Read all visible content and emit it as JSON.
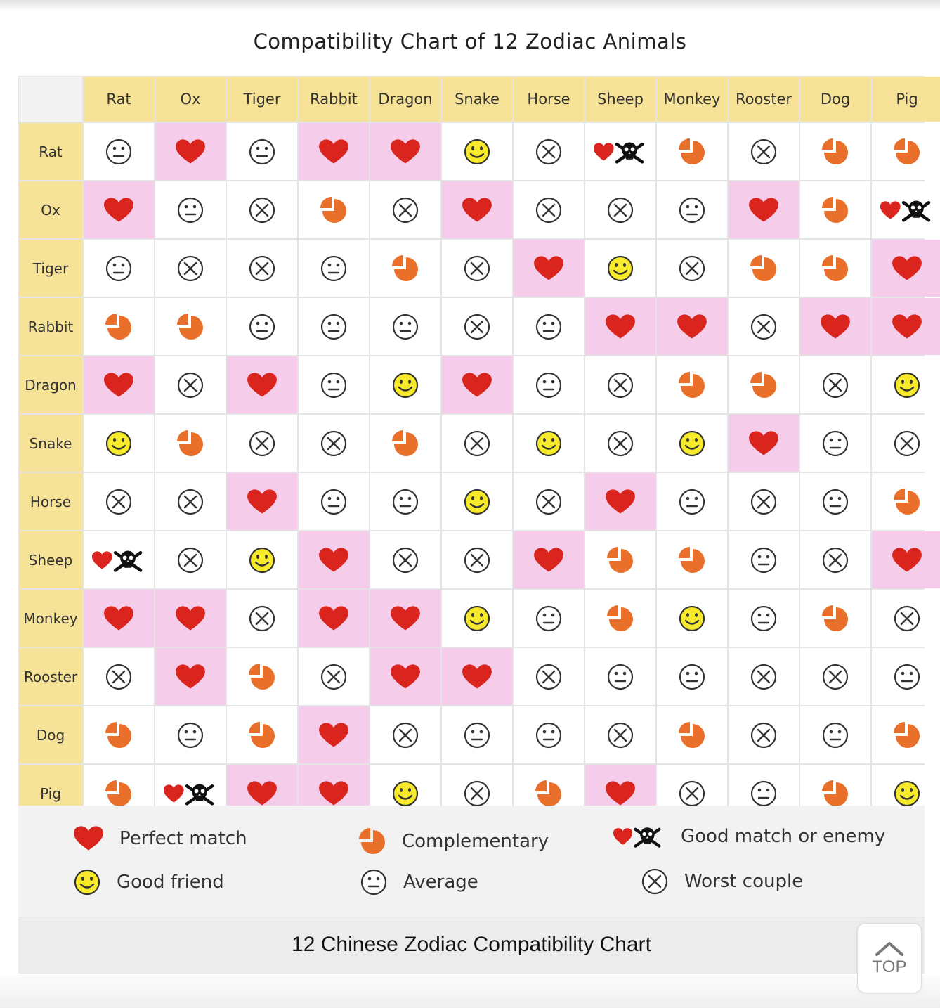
{
  "title": "Compatibility Chart of 12 Zodiac Animals",
  "animals": [
    "Rat",
    "Ox",
    "Tiger",
    "Rabbit",
    "Dragon",
    "Snake",
    "Horse",
    "Sheep",
    "Monkey",
    "Rooster",
    "Dog",
    "Pig"
  ],
  "symbol_icons": {
    "P": "heart-icon",
    "C": "pie-icon",
    "E": "heart-skull-icon",
    "G": "smiley-icon",
    "A": "neutral-face-icon",
    "W": "cross-circle-icon"
  },
  "matrix": [
    [
      "A",
      "P",
      "A",
      "P",
      "P",
      "G",
      "W",
      "E",
      "C",
      "W",
      "C",
      "C"
    ],
    [
      "P",
      "A",
      "W",
      "C",
      "W",
      "P",
      "W",
      "W",
      "A",
      "P",
      "C",
      "E"
    ],
    [
      "A",
      "W",
      "W",
      "A",
      "C",
      "W",
      "P",
      "G",
      "W",
      "C",
      "C",
      "P"
    ],
    [
      "C",
      "C",
      "A",
      "A",
      "A",
      "W",
      "A",
      "P",
      "P",
      "W",
      "P",
      "P"
    ],
    [
      "P",
      "W",
      "P",
      "A",
      "G",
      "P",
      "A",
      "W",
      "C",
      "C",
      "W",
      "G"
    ],
    [
      "G",
      "C",
      "W",
      "W",
      "C",
      "W",
      "G",
      "W",
      "G",
      "P",
      "A",
      "W"
    ],
    [
      "W",
      "W",
      "P",
      "A",
      "A",
      "G",
      "W",
      "P",
      "A",
      "W",
      "A",
      "C"
    ],
    [
      "E",
      "W",
      "G",
      "P",
      "W",
      "W",
      "P",
      "C",
      "C",
      "A",
      "W",
      "P"
    ],
    [
      "P",
      "P",
      "W",
      "P",
      "P",
      "G",
      "A",
      "C",
      "G",
      "A",
      "C",
      "W"
    ],
    [
      "W",
      "P",
      "C",
      "W",
      "P",
      "P",
      "W",
      "A",
      "A",
      "W",
      "W",
      "A"
    ],
    [
      "C",
      "A",
      "C",
      "P",
      "W",
      "A",
      "A",
      "W",
      "C",
      "W",
      "A",
      "C"
    ],
    [
      "C",
      "E",
      "P",
      "P",
      "G",
      "W",
      "C",
      "P",
      "W",
      "A",
      "C",
      "G"
    ]
  ],
  "legend": {
    "perfect_match": "Perfect match",
    "complementary": "Complementary",
    "good_match_or_enemy": "Good match or enemy",
    "good_friend": "Good friend",
    "average": "Average",
    "worst_couple": "Worst couple"
  },
  "colors": {
    "header_yellow": "#f7e397",
    "highlight_pink": "#f5cdea",
    "heart_red": "#d9251d",
    "pie_orange": "#e8702a",
    "smiley_yellow": "#f6ea2a"
  },
  "caption": "12 Chinese Zodiac Compatibility Chart",
  "top_button_label": "TOP"
}
